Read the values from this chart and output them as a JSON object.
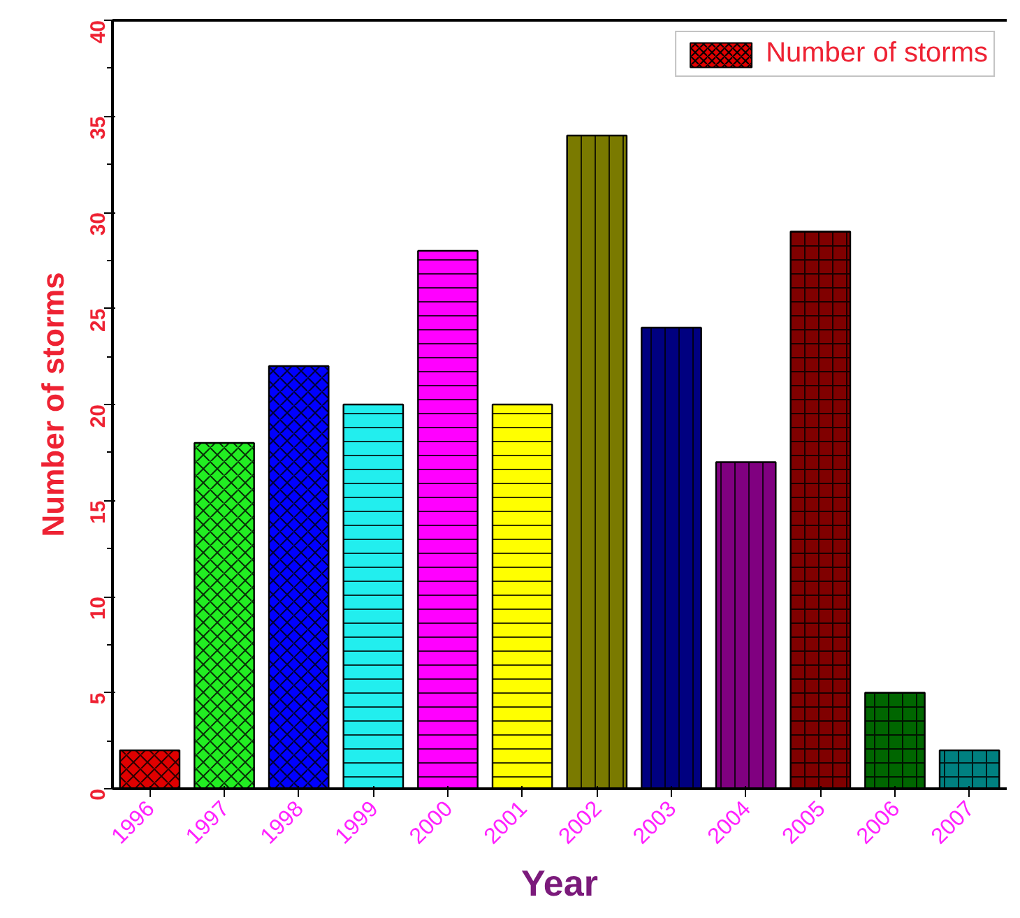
{
  "chart_data": {
    "type": "bar",
    "xlabel": "Year",
    "ylabel": "Number of storms",
    "categories": [
      "1996",
      "1997",
      "1998",
      "1999",
      "2000",
      "2001",
      "2002",
      "2003",
      "2004",
      "2005",
      "2006",
      "2007"
    ],
    "series": [
      {
        "name": "Number of storms",
        "color": "#e00000",
        "colors": [
          "#e00000",
          "#22ee22",
          "#0000ff",
          "#22eeee",
          "#ff00ff",
          "#ffff00",
          "#7a7a00",
          "#000080",
          "#800080",
          "#800000",
          "#006600",
          "#008080"
        ],
        "values": [
          2,
          18,
          22,
          20,
          28,
          20,
          34,
          24,
          17,
          29,
          5,
          2
        ]
      }
    ],
    "ylim": [
      0,
      40
    ],
    "yticks": [
      0,
      5,
      10,
      15,
      20,
      25,
      30,
      35,
      40
    ],
    "grid": false,
    "legend": "top right"
  }
}
